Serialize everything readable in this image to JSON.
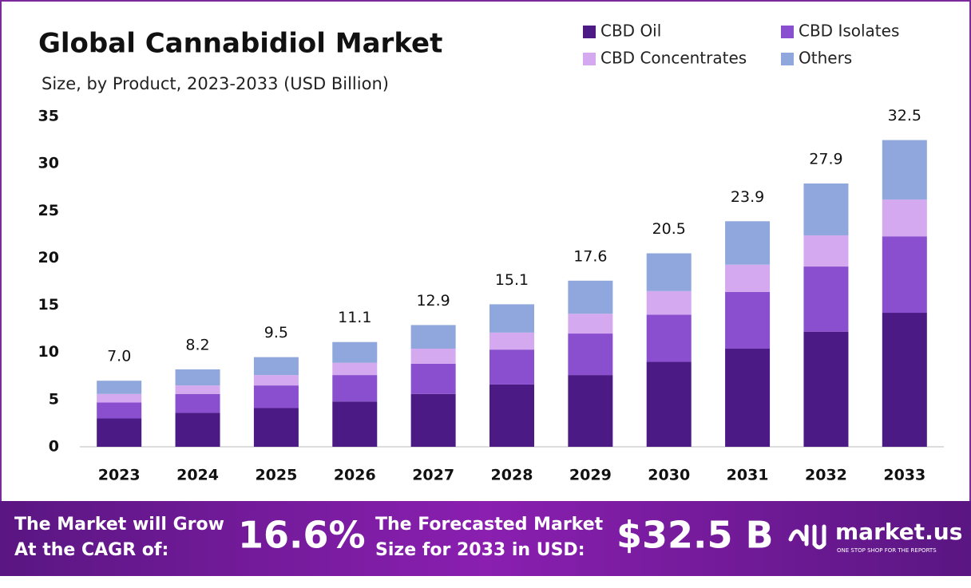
{
  "chart_data": {
    "type": "stacked_bar",
    "title": "Global Cannabidiol Market",
    "subtitle": "Size, by Product, 2023-2033 (USD Billion)",
    "categories": [
      "2023",
      "2024",
      "2025",
      "2026",
      "2027",
      "2028",
      "2029",
      "2030",
      "2031",
      "2032",
      "2033"
    ],
    "series": [
      {
        "name": "CBD Oil",
        "color": "#4b1a84",
        "values": [
          3.0,
          3.6,
          4.1,
          4.8,
          5.6,
          6.6,
          7.6,
          9.0,
          10.4,
          12.2,
          14.2
        ]
      },
      {
        "name": "CBD Isolates",
        "color": "#8a4fcf",
        "values": [
          1.7,
          2.0,
          2.4,
          2.8,
          3.2,
          3.7,
          4.4,
          5.0,
          6.0,
          6.9,
          8.1
        ]
      },
      {
        "name": "CBD Concentrates",
        "color": "#d4a9ef",
        "values": [
          0.9,
          0.9,
          1.1,
          1.3,
          1.6,
          1.8,
          2.1,
          2.5,
          2.9,
          3.3,
          3.9
        ]
      },
      {
        "name": "Others",
        "color": "#8fa7dc",
        "values": [
          1.4,
          1.7,
          1.9,
          2.2,
          2.5,
          3.0,
          3.5,
          4.0,
          4.6,
          5.5,
          6.3
        ]
      }
    ],
    "totals": [
      7.0,
      8.2,
      9.5,
      11.1,
      12.9,
      15.1,
      17.6,
      20.5,
      23.9,
      27.9,
      32.5
    ],
    "totals_labels": [
      "7.0",
      "8.2",
      "9.5",
      "11.1",
      "12.9",
      "15.1",
      "17.6",
      "20.5",
      "23.9",
      "27.9",
      "32.5"
    ],
    "ylim": [
      0,
      35
    ],
    "yticks": [
      0,
      5,
      10,
      15,
      20,
      25,
      30,
      35
    ],
    "grid": false
  },
  "footer": {
    "cagr_label": [
      "The Market will Grow",
      "At the CAGR of:"
    ],
    "cagr": "16.6%",
    "forecast_label": [
      "The Forecasted Market",
      "Size for 2033 in USD:"
    ],
    "forecast": "$32.5 B",
    "brand": "market.us",
    "tagline": "ONE STOP SHOP FOR THE REPORTS"
  }
}
